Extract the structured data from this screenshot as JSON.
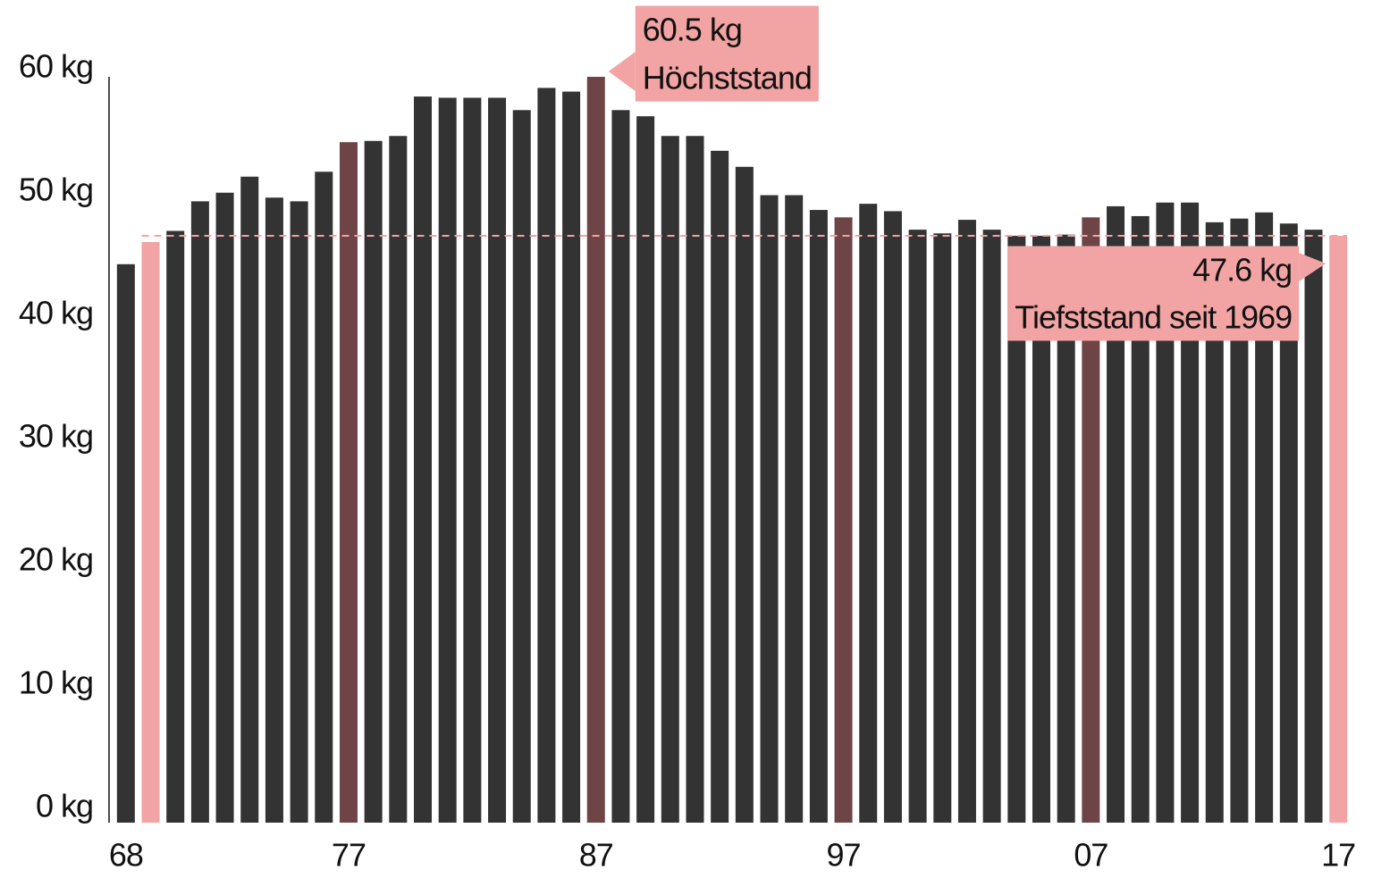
{
  "chart_data": {
    "type": "bar",
    "categories": [
      "68",
      null,
      null,
      null,
      null,
      null,
      null,
      null,
      null,
      "77",
      null,
      null,
      null,
      null,
      null,
      null,
      null,
      null,
      null,
      "87",
      null,
      null,
      null,
      null,
      null,
      null,
      null,
      null,
      null,
      "97",
      null,
      null,
      null,
      null,
      null,
      null,
      null,
      null,
      null,
      "07",
      null,
      null,
      null,
      null,
      null,
      null,
      null,
      null,
      null,
      "17"
    ],
    "values": [
      45.3,
      47.1,
      48.0,
      50.4,
      51.1,
      52.4,
      50.7,
      50.4,
      52.8,
      55.2,
      55.3,
      55.7,
      58.9,
      58.8,
      58.8,
      58.8,
      57.8,
      59.6,
      59.3,
      60.5,
      57.8,
      57.3,
      55.7,
      55.7,
      54.5,
      53.2,
      50.9,
      50.9,
      49.7,
      49.1,
      50.2,
      49.6,
      48.1,
      47.8,
      48.9,
      48.1,
      47.6,
      47.6,
      47.7,
      49.1,
      50.0,
      49.2,
      50.3,
      50.3,
      48.7,
      49.0,
      49.5,
      48.6,
      48.1,
      47.6
    ],
    "value_labels": [
      null,
      null,
      null,
      null,
      null,
      null,
      null,
      null,
      null,
      null,
      null,
      null,
      null,
      null,
      null,
      null,
      null,
      null,
      null,
      "60.5 kg",
      null,
      null,
      null,
      null,
      null,
      null,
      null,
      null,
      null,
      null,
      null,
      null,
      null,
      null,
      null,
      null,
      null,
      null,
      null,
      null,
      null,
      null,
      null,
      null,
      null,
      null,
      null,
      null,
      null,
      "47.6 kg"
    ],
    "annotations": [
      {
        "text": "Höchststand"
      },
      {
        "text": "Tiefststand seit 1969"
      }
    ],
    "color": "#333333",
    "colors": [
      "#333333",
      "#f2a3a3",
      "#333333",
      "#333333",
      "#333333",
      "#333333",
      "#333333",
      "#333333",
      "#333333",
      "#6e4447",
      "#333333",
      "#333333",
      "#333333",
      "#333333",
      "#333333",
      "#333333",
      "#333333",
      "#333333",
      "#333333",
      "#6e4447",
      "#333333",
      "#333333",
      "#333333",
      "#333333",
      "#333333",
      "#333333",
      "#333333",
      "#333333",
      "#333333",
      "#6e4447",
      "#333333",
      "#333333",
      "#333333",
      "#333333",
      "#333333",
      "#333333",
      "#333333",
      "#333333",
      "#333333",
      "#6e4447",
      "#333333",
      "#333333",
      "#333333",
      "#333333",
      "#333333",
      "#333333",
      "#333333",
      "#333333",
      "#333333",
      "#f2a3a3"
    ],
    "ylim": [
      0,
      60.5
    ],
    "yticks": [
      {
        "value": 0,
        "label": "0 kg"
      },
      {
        "value": 10,
        "label": "10 kg"
      },
      {
        "value": 20,
        "label": "20 kg"
      },
      {
        "value": 30,
        "label": "30 kg"
      },
      {
        "value": 40,
        "label": "40 kg"
      },
      {
        "value": 50,
        "label": "50 kg"
      },
      {
        "value": 60,
        "label": "60 kg"
      }
    ],
    "grid": false
  }
}
